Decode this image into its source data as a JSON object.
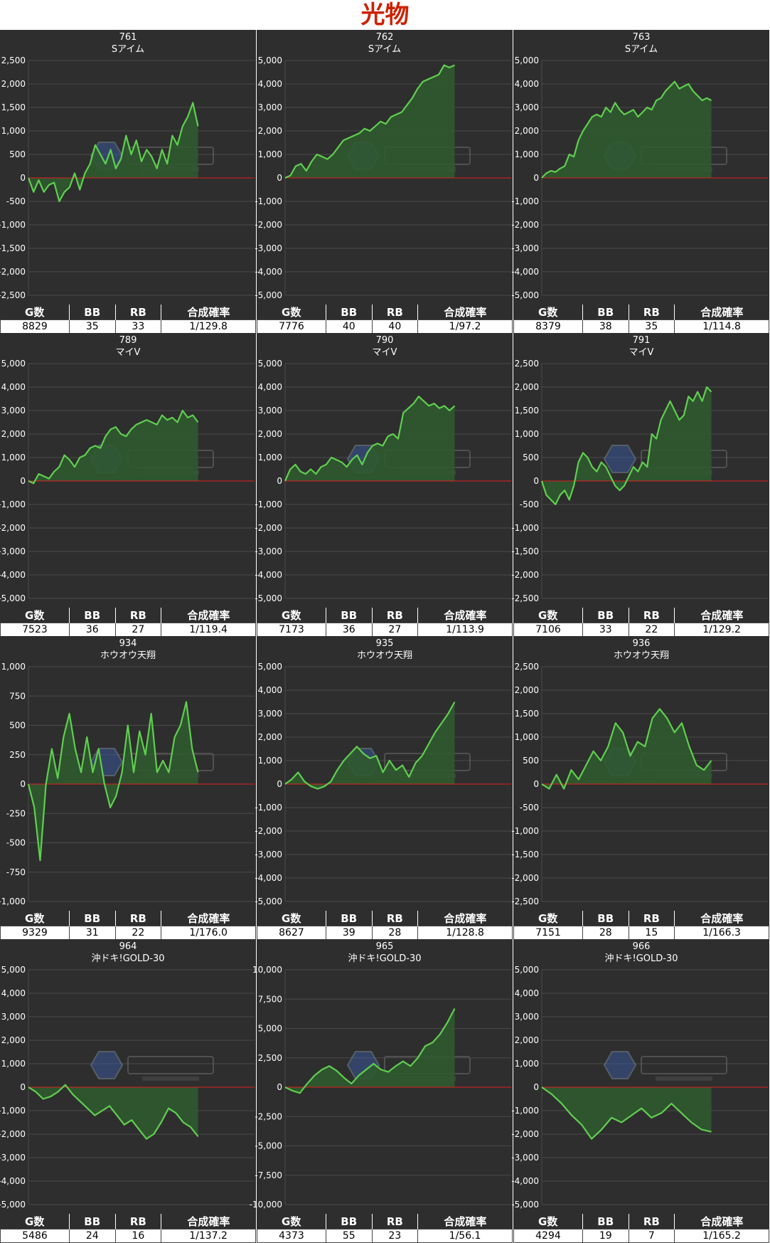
{
  "page": {
    "title": "光物"
  },
  "table_headers": [
    "G数",
    "BB",
    "RB",
    "合成確率"
  ],
  "colors": {
    "background": "#2e2e2e",
    "grid": "#4a4a4a",
    "line": "#5fcf4f",
    "fill": "#2f5a2f",
    "zero_line": "#e02020"
  },
  "chart_data": [
    {
      "type": "area",
      "number": "761",
      "name": "Sアイム",
      "ylim": [
        -2500,
        2500
      ],
      "yticks": [
        "2,500",
        "2,000",
        "1,500",
        "1,000",
        "500",
        "0",
        "-500",
        "-1,000",
        "-1,500",
        "-2,000",
        "-2,500"
      ],
      "values": [
        0,
        -300,
        -50,
        -300,
        -150,
        -100,
        -500,
        -300,
        -200,
        100,
        -250,
        100,
        300,
        700,
        500,
        300,
        600,
        200,
        400,
        900,
        500,
        800,
        350,
        600,
        450,
        200,
        600,
        300,
        900,
        700,
        1100,
        1300,
        1600,
        1100
      ],
      "stats": {
        "g": "8829",
        "bb": "35",
        "rb": "33",
        "rate": "1/129.8"
      }
    },
    {
      "type": "area",
      "number": "762",
      "name": "Sアイム",
      "ylim": [
        -5000,
        5000
      ],
      "yticks": [
        "5,000",
        "4,000",
        "3,000",
        "2,000",
        "1,000",
        "0",
        "-1,000",
        "-2,000",
        "-3,000",
        "-4,000",
        "-5,000"
      ],
      "values": [
        0,
        100,
        500,
        600,
        300,
        700,
        1000,
        900,
        800,
        1000,
        1300,
        1600,
        1700,
        1800,
        1900,
        2100,
        2000,
        2200,
        2400,
        2300,
        2600,
        2700,
        2800,
        3100,
        3400,
        3800,
        4100,
        4200,
        4300,
        4400,
        4800,
        4700,
        4800
      ],
      "stats": {
        "g": "7776",
        "bb": "40",
        "rb": "40",
        "rate": "1/97.2"
      }
    },
    {
      "type": "area",
      "number": "763",
      "name": "Sアイム",
      "ylim": [
        -5000,
        5000
      ],
      "yticks": [
        "5,000",
        "4,000",
        "3,000",
        "2,000",
        "1,000",
        "0",
        "-1,000",
        "-2,000",
        "-3,000",
        "-4,000",
        "-5,000"
      ],
      "values": [
        0,
        200,
        300,
        250,
        400,
        500,
        1000,
        900,
        1600,
        2000,
        2300,
        2600,
        2700,
        2600,
        3000,
        2800,
        3200,
        2900,
        2700,
        2800,
        2900,
        2600,
        2800,
        3000,
        2900,
        3300,
        3400,
        3700,
        3900,
        4100,
        3800,
        3900,
        4000,
        3700,
        3500,
        3300,
        3400,
        3300
      ],
      "stats": {
        "g": "8379",
        "bb": "38",
        "rb": "35",
        "rate": "1/114.8"
      }
    },
    {
      "type": "area",
      "number": "789",
      "name": "マイV",
      "ylim": [
        -5000,
        5000
      ],
      "yticks": [
        "5,000",
        "4,000",
        "3,000",
        "2,000",
        "1,000",
        "0",
        "-1,000",
        "-2,000",
        "-3,000",
        "-4,000",
        "-5,000"
      ],
      "values": [
        0,
        -100,
        300,
        200,
        100,
        400,
        600,
        1100,
        900,
        600,
        1000,
        1100,
        1400,
        1500,
        1400,
        1900,
        2200,
        2300,
        2000,
        1900,
        2200,
        2400,
        2500,
        2600,
        2500,
        2400,
        2800,
        2600,
        2700,
        2500,
        3000,
        2700,
        2800,
        2500
      ],
      "stats": {
        "g": "7523",
        "bb": "36",
        "rb": "27",
        "rate": "1/119.4"
      }
    },
    {
      "type": "area",
      "number": "790",
      "name": "マイV",
      "ylim": [
        -5000,
        5000
      ],
      "yticks": [
        "5,000",
        "4,000",
        "3,000",
        "2,000",
        "1,000",
        "0",
        "-1,000",
        "-2,000",
        "-3,000",
        "-4,000",
        "-5,000"
      ],
      "values": [
        0,
        500,
        700,
        400,
        300,
        500,
        300,
        600,
        700,
        1000,
        900,
        800,
        600,
        900,
        1100,
        700,
        1200,
        1500,
        1600,
        1500,
        1900,
        2000,
        1800,
        2900,
        3100,
        3300,
        3600,
        3400,
        3200,
        3300,
        3100,
        3200,
        3000,
        3200
      ],
      "stats": {
        "g": "7173",
        "bb": "36",
        "rb": "27",
        "rate": "1/113.9"
      }
    },
    {
      "type": "area",
      "number": "791",
      "name": "マイV",
      "ylim": [
        -2500,
        2500
      ],
      "yticks": [
        "2,500",
        "2,000",
        "1,500",
        "1,000",
        "500",
        "0",
        "-500",
        "-1,000",
        "-1,500",
        "-2,000",
        "-2,500"
      ],
      "values": [
        0,
        -300,
        -400,
        -500,
        -300,
        -200,
        -400,
        -100,
        400,
        600,
        500,
        300,
        200,
        400,
        300,
        100,
        -100,
        -200,
        -100,
        100,
        300,
        200,
        400,
        300,
        1000,
        900,
        1300,
        1500,
        1700,
        1500,
        1300,
        1400,
        1800,
        1700,
        1900,
        1700,
        2000,
        1900
      ],
      "stats": {
        "g": "7106",
        "bb": "33",
        "rb": "22",
        "rate": "1/129.2"
      }
    },
    {
      "type": "area",
      "number": "934",
      "name": "ホウオウ天翔",
      "ylim": [
        -1000,
        1000
      ],
      "yticks": [
        "1,000",
        "750",
        "500",
        "250",
        "0",
        "-250",
        "-500",
        "-750",
        "-1,000"
      ],
      "values": [
        0,
        -200,
        -650,
        0,
        300,
        50,
        400,
        600,
        300,
        100,
        400,
        100,
        300,
        0,
        -200,
        -100,
        100,
        500,
        100,
        450,
        250,
        600,
        100,
        200,
        100,
        400,
        500,
        700,
        300,
        100
      ],
      "stats": {
        "g": "9329",
        "bb": "31",
        "rb": "22",
        "rate": "1/176.0"
      }
    },
    {
      "type": "area",
      "number": "935",
      "name": "ホウオウ天翔",
      "ylim": [
        -5000,
        5000
      ],
      "yticks": [
        "5,000",
        "4,000",
        "3,000",
        "2,000",
        "1,000",
        "0",
        "-1,000",
        "-2,000",
        "-3,000",
        "-4,000",
        "-5,000"
      ],
      "values": [
        0,
        200,
        500,
        100,
        -100,
        -200,
        -100,
        100,
        600,
        1000,
        1300,
        1600,
        1300,
        1100,
        1200,
        500,
        1000,
        600,
        800,
        300,
        900,
        1200,
        1700,
        2200,
        2600,
        3000,
        3500
      ],
      "stats": {
        "g": "8627",
        "bb": "39",
        "rb": "28",
        "rate": "1/128.8"
      }
    },
    {
      "type": "area",
      "number": "936",
      "name": "ホウオウ天翔",
      "ylim": [
        -2500,
        2500
      ],
      "yticks": [
        "2,500",
        "2,000",
        "1,500",
        "1,000",
        "500",
        "0",
        "-500",
        "-1,000",
        "-1,500",
        "-2,000",
        "-2,500"
      ],
      "values": [
        0,
        -100,
        200,
        -100,
        300,
        100,
        400,
        700,
        500,
        800,
        1300,
        1100,
        600,
        900,
        800,
        1400,
        1600,
        1400,
        1100,
        1300,
        800,
        400,
        300,
        500
      ],
      "stats": {
        "g": "7151",
        "bb": "28",
        "rb": "15",
        "rate": "1/166.3"
      }
    },
    {
      "type": "area",
      "number": "964",
      "name": "沖ドキ!GOLD-30",
      "ylim": [
        -5000,
        5000
      ],
      "yticks": [
        "5,000",
        "4,000",
        "3,000",
        "2,000",
        "1,000",
        "0",
        "-1,000",
        "-2,000",
        "-3,000",
        "-4,000",
        "-5,000"
      ],
      "values": [
        0,
        -200,
        -500,
        -400,
        -200,
        100,
        -300,
        -600,
        -900,
        -1200,
        -1000,
        -800,
        -1200,
        -1600,
        -1400,
        -1800,
        -2200,
        -2000,
        -1500,
        -900,
        -1100,
        -1500,
        -1700,
        -2100
      ],
      "stats": {
        "g": "5486",
        "bb": "24",
        "rb": "16",
        "rate": "1/137.2"
      }
    },
    {
      "type": "area",
      "number": "965",
      "name": "沖ドキ!GOLD-30",
      "ylim": [
        -10000,
        10000
      ],
      "yticks": [
        "10,000",
        "7,500",
        "5,000",
        "2,500",
        "0",
        "-2,500",
        "-5,000",
        "-7,500",
        "-10,000"
      ],
      "values": [
        0,
        -300,
        -500,
        300,
        1000,
        1500,
        1800,
        1400,
        800,
        300,
        1000,
        1500,
        2000,
        1500,
        1300,
        1800,
        2200,
        1800,
        2500,
        3500,
        3800,
        4500,
        5500,
        6700
      ],
      "stats": {
        "g": "4373",
        "bb": "55",
        "rb": "23",
        "rate": "1/56.1"
      }
    },
    {
      "type": "area",
      "number": "966",
      "name": "沖ドキ!GOLD-30",
      "ylim": [
        -5000,
        5000
      ],
      "yticks": [
        "5,000",
        "4,000",
        "3,000",
        "2,000",
        "1,000",
        "0",
        "-1,000",
        "-2,000",
        "-3,000",
        "-4,000",
        "-5,000"
      ],
      "values": [
        0,
        -300,
        -700,
        -1200,
        -1600,
        -2200,
        -1800,
        -1300,
        -1500,
        -1200,
        -900,
        -1300,
        -1100,
        -700,
        -1100,
        -1500,
        -1800,
        -1900
      ],
      "stats": {
        "g": "4294",
        "bb": "19",
        "rb": "7",
        "rate": "1/165.2"
      }
    }
  ]
}
